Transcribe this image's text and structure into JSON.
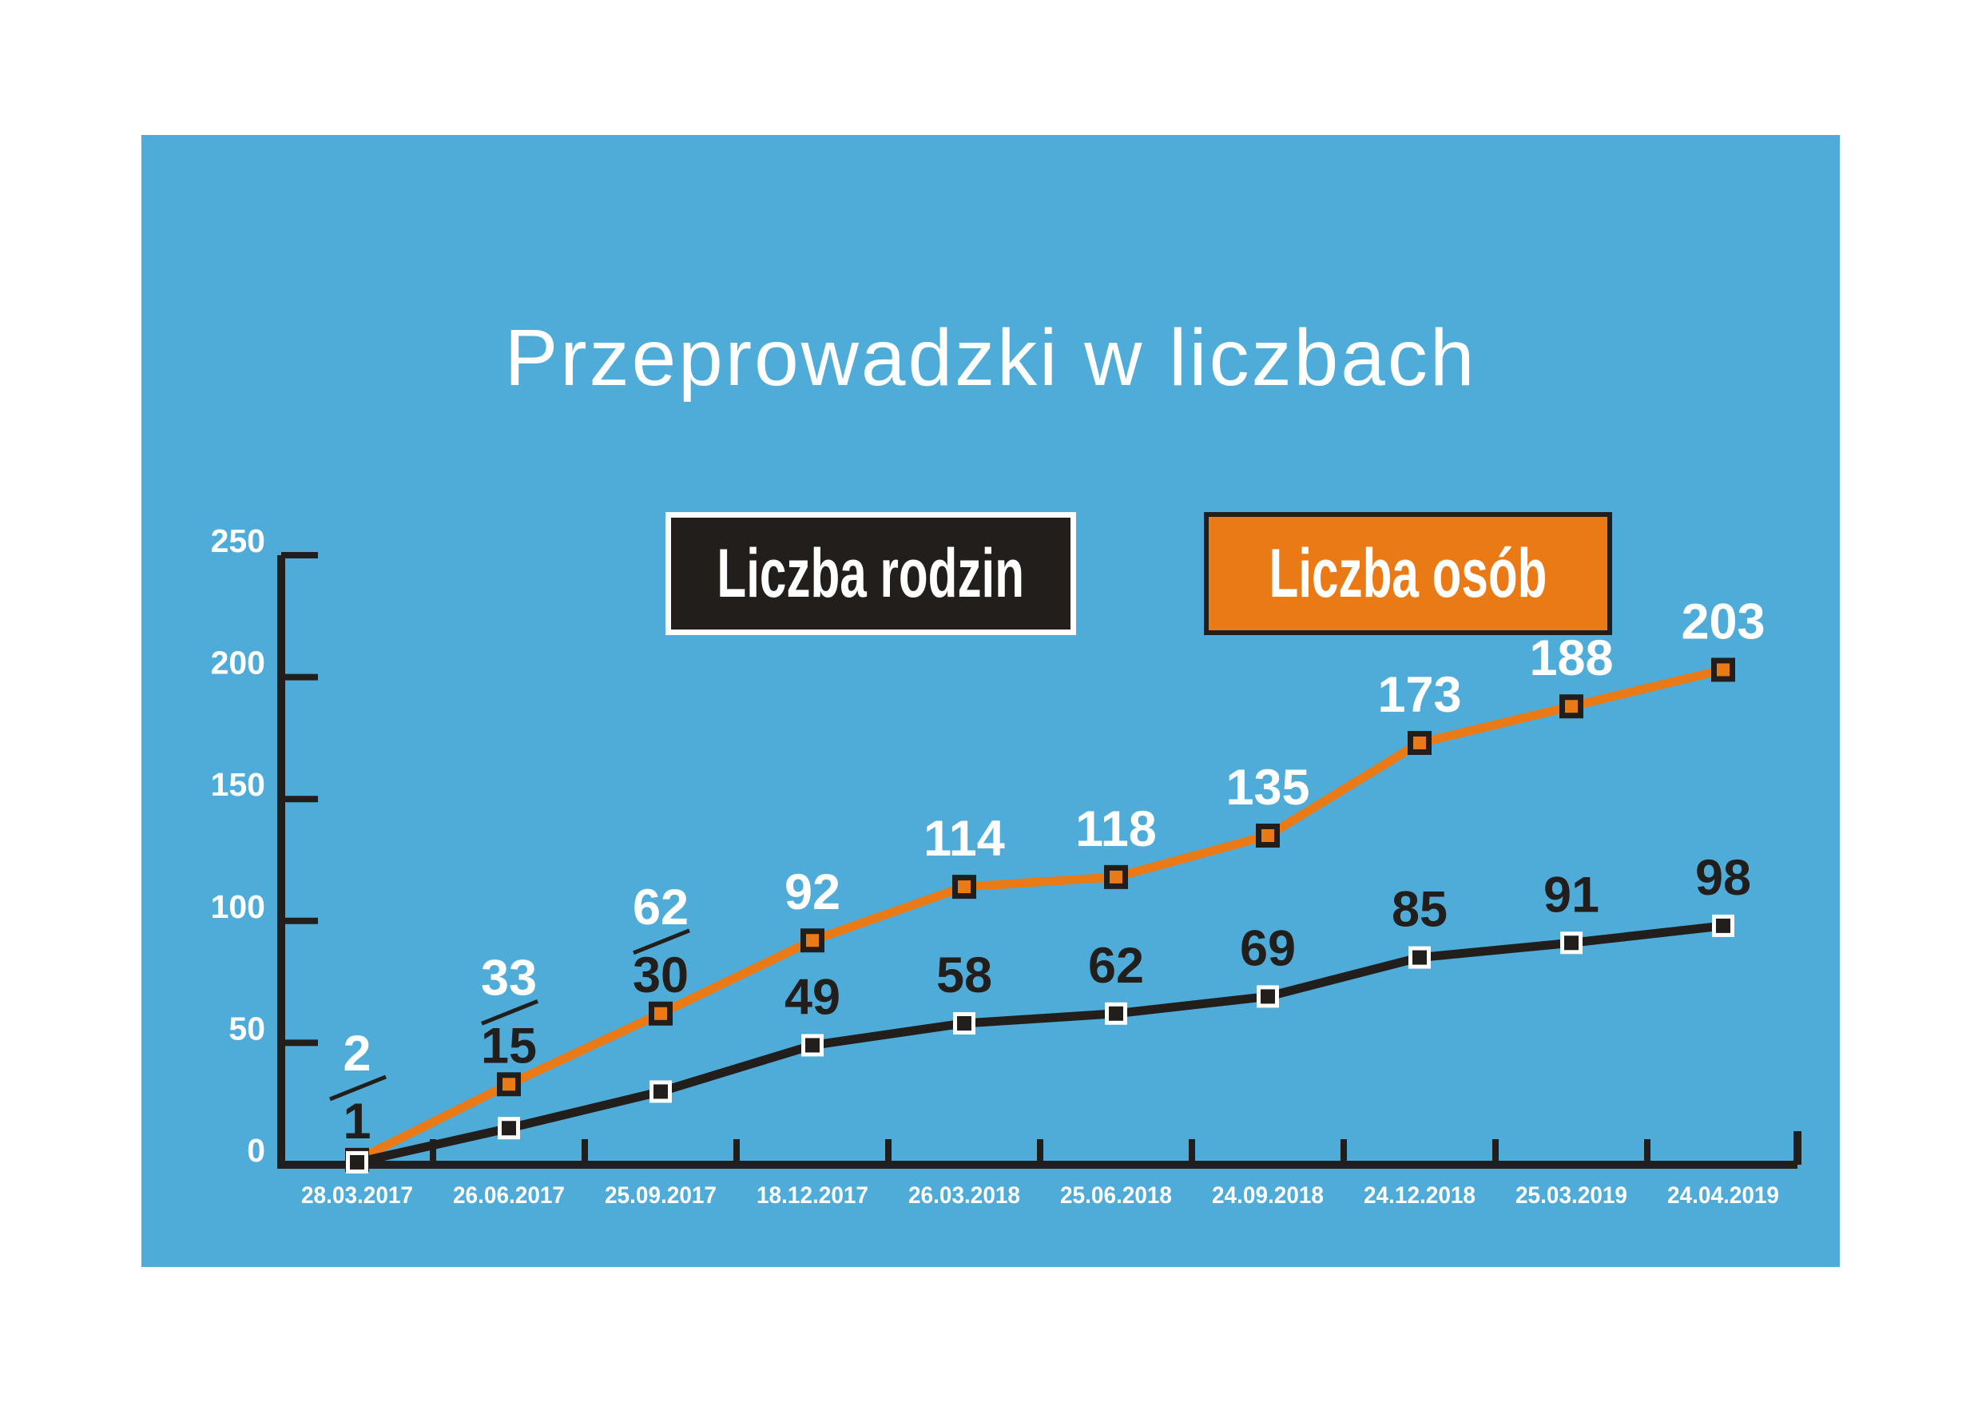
{
  "title": "Przeprowadzki w liczbach",
  "colors": {
    "page_background": "#ffffff",
    "panel_background": "#4fabd7",
    "dark": "#211e1c",
    "orange": "#ea7a16",
    "white": "#ffffff"
  },
  "legend": {
    "items": [
      {
        "label": "Liczba rodzin",
        "bg": "#211e1c",
        "border": "#ffffff"
      },
      {
        "label": "Liczba osób",
        "bg": "#ea7a16",
        "border": "#211e1c"
      }
    ]
  },
  "chart_data": {
    "type": "line",
    "title": "Przeprowadzki w liczbach",
    "categories": [
      "28.03.2017",
      "26.06.2017",
      "25.09.2017",
      "18.12.2017",
      "26.03.2018",
      "25.06.2018",
      "24.09.2018",
      "24.12.2018",
      "25.03.2019",
      "24.04.2019"
    ],
    "series": [
      {
        "name": "Liczba osób",
        "color": "#ea7a16",
        "label_color": "#ffffff",
        "values": [
          2,
          33,
          62,
          92,
          114,
          118,
          135,
          173,
          188,
          203
        ]
      },
      {
        "name": "Liczba rodzin",
        "color": "#211e1c",
        "label_color": "#211e1c",
        "values": [
          1,
          15,
          30,
          49,
          58,
          62,
          69,
          85,
          91,
          98
        ]
      }
    ],
    "xlabel": "",
    "ylabel": "",
    "ylim": [
      0,
      250
    ],
    "yticks": [
      0,
      50,
      100,
      150,
      200,
      250
    ],
    "grid": false,
    "legend_position": "top",
    "joint_label_points": [
      0,
      1,
      2
    ],
    "marker": "square"
  }
}
